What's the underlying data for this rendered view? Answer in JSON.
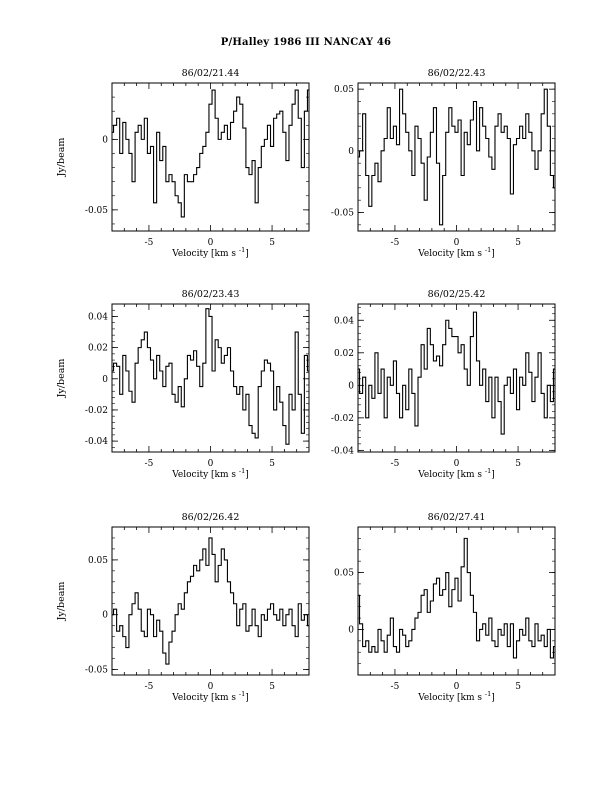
{
  "page": {
    "title": "P/Halley 1986 III    NANCAY      46"
  },
  "chart_data": [
    {
      "type": "line",
      "title": "86/02/21.44",
      "xlabel": "Velocity [km s",
      "xlabel_sup": "-1",
      "xlabel_end": "]",
      "ylabel": "Jy/beam",
      "xlim": [
        -8,
        8
      ],
      "ylim": [
        -0.065,
        0.04
      ],
      "xticks": [
        -5,
        0,
        5
      ],
      "yticks": [
        -0.05,
        0
      ],
      "ytick_labels": [
        "-0.05",
        "0"
      ],
      "x": [
        -8.0,
        -7.75,
        -7.5,
        -7.25,
        -7.0,
        -6.75,
        -6.5,
        -6.25,
        -6.0,
        -5.75,
        -5.5,
        -5.25,
        -5.0,
        -4.75,
        -4.5,
        -4.25,
        -4.0,
        -3.75,
        -3.5,
        -3.25,
        -3.0,
        -2.75,
        -2.5,
        -2.25,
        -2.0,
        -1.75,
        -1.5,
        -1.25,
        -1.0,
        -0.75,
        -0.5,
        -0.25,
        0.0,
        0.25,
        0.5,
        0.75,
        1.0,
        1.25,
        1.5,
        1.75,
        2.0,
        2.25,
        2.5,
        2.75,
        3.0,
        3.25,
        3.5,
        3.75,
        4.0,
        4.25,
        4.5,
        4.75,
        5.0,
        5.25,
        5.5,
        5.75,
        6.0,
        6.25,
        6.5,
        6.75,
        7.0,
        7.25,
        7.5,
        7.75,
        8.0
      ],
      "y": [
        0.005,
        0.01,
        0.015,
        -0.01,
        0.012,
        0.0,
        -0.01,
        -0.03,
        0.005,
        0.01,
        0.0,
        0.015,
        -0.01,
        -0.005,
        -0.045,
        0.005,
        -0.015,
        -0.005,
        -0.03,
        -0.025,
        -0.03,
        -0.04,
        -0.045,
        -0.055,
        -0.025,
        -0.03,
        -0.03,
        -0.025,
        -0.02,
        -0.01,
        -0.005,
        0.005,
        0.025,
        0.035,
        0.015,
        0.0,
        0.005,
        0.01,
        0.0,
        0.012,
        0.02,
        0.03,
        0.025,
        0.008,
        -0.02,
        -0.025,
        -0.015,
        -0.045,
        -0.02,
        -0.005,
        0.0,
        0.01,
        -0.005,
        0.015,
        0.018,
        0.02,
        0.005,
        -0.015,
        0.01,
        0.025,
        0.035,
        0.015,
        -0.02,
        0.02,
        0.035
      ]
    },
    {
      "type": "line",
      "title": "86/02/22.43",
      "xlabel": "Velocity [km s",
      "xlabel_sup": "-1",
      "xlabel_end": "]",
      "ylabel": "",
      "xlim": [
        -8,
        8
      ],
      "ylim": [
        -0.065,
        0.055
      ],
      "xticks": [
        -5,
        0,
        5
      ],
      "yticks": [
        -0.05,
        0,
        0.05
      ],
      "ytick_labels": [
        "-0.05",
        "0",
        "0.05"
      ],
      "x": [
        -8.0,
        -7.75,
        -7.5,
        -7.25,
        -7.0,
        -6.75,
        -6.5,
        -6.25,
        -6.0,
        -5.75,
        -5.5,
        -5.25,
        -5.0,
        -4.75,
        -4.5,
        -4.25,
        -4.0,
        -3.75,
        -3.5,
        -3.25,
        -3.0,
        -2.75,
        -2.5,
        -2.25,
        -2.0,
        -1.75,
        -1.5,
        -1.25,
        -1.0,
        -0.75,
        -0.5,
        -0.25,
        0.0,
        0.25,
        0.5,
        0.75,
        1.0,
        1.25,
        1.5,
        1.75,
        2.0,
        2.25,
        2.5,
        2.75,
        3.0,
        3.25,
        3.5,
        3.75,
        4.0,
        4.25,
        4.5,
        4.75,
        5.0,
        5.25,
        5.5,
        5.75,
        6.0,
        6.25,
        6.5,
        6.75,
        7.0,
        7.25,
        7.5,
        7.75,
        8.0
      ],
      "y": [
        -0.005,
        0.0,
        0.03,
        -0.02,
        -0.045,
        -0.02,
        -0.01,
        -0.025,
        0.0,
        0.01,
        0.035,
        0.01,
        0.02,
        0.005,
        0.05,
        0.03,
        0.015,
        0.0,
        -0.02,
        0.02,
        0.01,
        -0.01,
        -0.04,
        -0.005,
        0.015,
        0.035,
        -0.01,
        -0.06,
        -0.02,
        0.015,
        0.035,
        0.02,
        0.015,
        0.025,
        -0.02,
        0.015,
        0.005,
        0.025,
        0.04,
        0.0,
        0.035,
        0.02,
        0.01,
        -0.005,
        -0.015,
        0.02,
        0.03,
        0.015,
        0.02,
        0.01,
        -0.035,
        0.005,
        0.01,
        0.02,
        0.01,
        0.03,
        0.015,
        0.0,
        -0.015,
        0.0,
        0.03,
        0.05,
        0.02,
        -0.02,
        -0.03
      ]
    },
    {
      "type": "line",
      "title": "86/02/23.43",
      "xlabel": "Velocity [km s",
      "xlabel_sup": "-1",
      "xlabel_end": "]",
      "ylabel": "Jy/beam",
      "xlim": [
        -8,
        8
      ],
      "ylim": [
        -0.047,
        0.048
      ],
      "xticks": [
        -5,
        0,
        5
      ],
      "yticks": [
        -0.04,
        -0.02,
        0,
        0.02,
        0.04
      ],
      "ytick_labels": [
        "-0.04",
        "-0.02",
        "0",
        "0.02",
        "0.04"
      ],
      "x": [
        -8.0,
        -7.75,
        -7.5,
        -7.25,
        -7.0,
        -6.75,
        -6.5,
        -6.25,
        -6.0,
        -5.75,
        -5.5,
        -5.25,
        -5.0,
        -4.75,
        -4.5,
        -4.25,
        -4.0,
        -3.75,
        -3.5,
        -3.25,
        -3.0,
        -2.75,
        -2.5,
        -2.25,
        -2.0,
        -1.75,
        -1.5,
        -1.25,
        -1.0,
        -0.75,
        -0.5,
        -0.25,
        0.0,
        0.25,
        0.5,
        0.75,
        1.0,
        1.25,
        1.5,
        1.75,
        2.0,
        2.25,
        2.5,
        2.75,
        3.0,
        3.25,
        3.5,
        3.75,
        4.0,
        4.25,
        4.5,
        4.75,
        5.0,
        5.25,
        5.5,
        5.75,
        6.0,
        6.25,
        6.5,
        6.75,
        7.0,
        7.25,
        7.5,
        7.75,
        8.0
      ],
      "y": [
        0.005,
        0.01,
        0.008,
        -0.01,
        0.015,
        0.005,
        -0.008,
        -0.015,
        0.01,
        0.02,
        0.025,
        0.03,
        0.02,
        0.012,
        0.0,
        0.015,
        0.005,
        -0.005,
        0.008,
        0.01,
        -0.01,
        -0.015,
        -0.005,
        -0.018,
        0.0,
        0.015,
        0.012,
        0.018,
        0.008,
        -0.005,
        0.01,
        0.045,
        0.04,
        0.005,
        0.025,
        0.02,
        0.01,
        0.015,
        0.02,
        0.005,
        -0.005,
        -0.01,
        -0.005,
        -0.02,
        -0.01,
        -0.03,
        -0.035,
        -0.038,
        -0.005,
        0.005,
        0.012,
        0.01,
        0.005,
        -0.02,
        -0.005,
        -0.015,
        -0.03,
        -0.042,
        -0.01,
        -0.02,
        0.03,
        -0.01,
        -0.035,
        0.015,
        0.005
      ]
    },
    {
      "type": "line",
      "title": "86/02/25.42",
      "xlabel": "Velocity [km s",
      "xlabel_sup": "-1",
      "xlabel_end": "]",
      "ylabel": "",
      "xlim": [
        -8,
        8
      ],
      "ylim": [
        -0.041,
        0.05
      ],
      "xticks": [
        -5,
        0,
        5
      ],
      "yticks": [
        -0.04,
        -0.02,
        0,
        0.02,
        0.04
      ],
      "ytick_labels": [
        "-0.04",
        "-0.02",
        "0",
        "0.02",
        "0.04"
      ],
      "x": [
        -8.0,
        -7.75,
        -7.5,
        -7.25,
        -7.0,
        -6.75,
        -6.5,
        -6.25,
        -6.0,
        -5.75,
        -5.5,
        -5.25,
        -5.0,
        -4.75,
        -4.5,
        -4.25,
        -4.0,
        -3.75,
        -3.5,
        -3.25,
        -3.0,
        -2.75,
        -2.5,
        -2.25,
        -2.0,
        -1.75,
        -1.5,
        -1.25,
        -1.0,
        -0.75,
        -0.5,
        -0.25,
        0.0,
        0.25,
        0.5,
        0.75,
        1.0,
        1.25,
        1.5,
        1.75,
        2.0,
        2.25,
        2.5,
        2.75,
        3.0,
        3.25,
        3.5,
        3.75,
        4.0,
        4.25,
        4.5,
        4.75,
        5.0,
        5.25,
        5.5,
        5.75,
        6.0,
        6.25,
        6.5,
        6.75,
        7.0,
        7.25,
        7.5,
        7.75,
        8.0
      ],
      "y": [
        0.01,
        -0.005,
        0.005,
        -0.02,
        0.0,
        -0.008,
        0.02,
        -0.005,
        0.01,
        -0.02,
        0.005,
        0.0,
        0.015,
        -0.005,
        -0.02,
        0.0,
        -0.015,
        0.01,
        -0.005,
        -0.025,
        0.005,
        0.025,
        0.01,
        0.035,
        0.025,
        0.015,
        0.018,
        0.012,
        0.025,
        0.04,
        0.035,
        0.03,
        0.03,
        0.02,
        0.025,
        0.01,
        0.0,
        0.03,
        0.045,
        0.015,
        0.0,
        0.01,
        -0.01,
        0.005,
        -0.02,
        0.005,
        -0.01,
        -0.03,
        0.0,
        0.005,
        -0.005,
        0.01,
        -0.015,
        0.005,
        0.0,
        0.02,
        0.008,
        -0.01,
        0.005,
        0.02,
        -0.005,
        -0.02,
        0.0,
        -0.01,
        0.01
      ]
    },
    {
      "type": "line",
      "title": "86/02/26.42",
      "xlabel": "Velocity [km s",
      "xlabel_sup": "-1",
      "xlabel_end": "]",
      "ylabel": "Jy/beam",
      "xlim": [
        -8,
        8
      ],
      "ylim": [
        -0.055,
        0.08
      ],
      "xticks": [
        -5,
        0,
        5
      ],
      "yticks": [
        -0.05,
        0,
        0.05
      ],
      "ytick_labels": [
        "-0.05",
        "0",
        "0.05"
      ],
      "x": [
        -8.0,
        -7.75,
        -7.5,
        -7.25,
        -7.0,
        -6.75,
        -6.5,
        -6.25,
        -6.0,
        -5.75,
        -5.5,
        -5.25,
        -5.0,
        -4.75,
        -4.5,
        -4.25,
        -4.0,
        -3.75,
        -3.5,
        -3.25,
        -3.0,
        -2.75,
        -2.5,
        -2.25,
        -2.0,
        -1.75,
        -1.5,
        -1.25,
        -1.0,
        -0.75,
        -0.5,
        -0.25,
        0.0,
        0.25,
        0.5,
        0.75,
        1.0,
        1.25,
        1.5,
        1.75,
        2.0,
        2.25,
        2.5,
        2.75,
        3.0,
        3.25,
        3.5,
        3.75,
        4.0,
        4.25,
        4.5,
        4.75,
        5.0,
        5.25,
        5.5,
        5.75,
        6.0,
        6.25,
        6.5,
        6.75,
        7.0,
        7.25,
        7.5,
        7.75,
        8.0
      ],
      "y": [
        0.0,
        0.005,
        -0.015,
        -0.01,
        -0.02,
        -0.03,
        0.0,
        0.01,
        0.02,
        0.005,
        -0.015,
        -0.02,
        0.005,
        0.0,
        -0.02,
        -0.005,
        -0.015,
        -0.035,
        -0.045,
        -0.025,
        -0.015,
        0.0,
        0.01,
        0.005,
        0.02,
        0.03,
        0.035,
        0.045,
        0.04,
        0.05,
        0.06,
        0.045,
        0.07,
        0.055,
        0.03,
        0.045,
        0.06,
        0.05,
        0.03,
        0.02,
        0.01,
        -0.01,
        0.005,
        0.01,
        -0.015,
        -0.01,
        0.005,
        -0.01,
        -0.02,
        0.0,
        -0.005,
        0.005,
        0.01,
        0.0,
        -0.005,
        0.005,
        -0.01,
        0.0,
        0.005,
        -0.01,
        -0.02,
        0.01,
        -0.005,
        0.0,
        -0.01
      ]
    },
    {
      "type": "line",
      "title": "86/02/27.41",
      "xlabel": "Velocity [km s",
      "xlabel_sup": "-1",
      "xlabel_end": "]",
      "ylabel": "",
      "xlim": [
        -8,
        8
      ],
      "ylim": [
        -0.04,
        0.09
      ],
      "xticks": [
        -5,
        0,
        5
      ],
      "yticks": [
        0,
        0.05
      ],
      "ytick_labels": [
        "0",
        "0.05"
      ],
      "x": [
        -8.0,
        -7.75,
        -7.5,
        -7.25,
        -7.0,
        -6.75,
        -6.5,
        -6.25,
        -6.0,
        -5.75,
        -5.5,
        -5.25,
        -5.0,
        -4.75,
        -4.5,
        -4.25,
        -4.0,
        -3.75,
        -3.5,
        -3.25,
        -3.0,
        -2.75,
        -2.5,
        -2.25,
        -2.0,
        -1.75,
        -1.5,
        -1.25,
        -1.0,
        -0.75,
        -0.5,
        -0.25,
        0.0,
        0.25,
        0.5,
        0.75,
        1.0,
        1.25,
        1.5,
        1.75,
        2.0,
        2.25,
        2.5,
        2.75,
        3.0,
        3.25,
        3.5,
        3.75,
        4.0,
        4.25,
        4.5,
        4.75,
        5.0,
        5.25,
        5.5,
        5.75,
        6.0,
        6.25,
        6.5,
        6.75,
        7.0,
        7.25,
        7.5,
        7.75,
        8.0
      ],
      "y": [
        0.03,
        0.005,
        -0.015,
        -0.01,
        -0.02,
        -0.015,
        -0.02,
        0.0,
        -0.01,
        -0.02,
        -0.005,
        0.01,
        -0.015,
        -0.02,
        0.0,
        -0.005,
        -0.015,
        -0.01,
        0.0,
        0.01,
        0.015,
        0.03,
        0.035,
        0.015,
        0.025,
        0.04,
        0.045,
        0.03,
        0.035,
        0.05,
        0.02,
        0.035,
        0.045,
        0.025,
        0.055,
        0.08,
        0.05,
        0.03,
        0.015,
        -0.01,
        0.0,
        0.005,
        -0.005,
        0.01,
        -0.01,
        -0.015,
        0.0,
        -0.005,
        0.005,
        -0.015,
        0.005,
        -0.025,
        -0.01,
        0.0,
        -0.005,
        0.01,
        -0.01,
        -0.015,
        0.005,
        -0.01,
        -0.005,
        -0.015,
        0.0,
        -0.025,
        -0.015
      ]
    }
  ]
}
